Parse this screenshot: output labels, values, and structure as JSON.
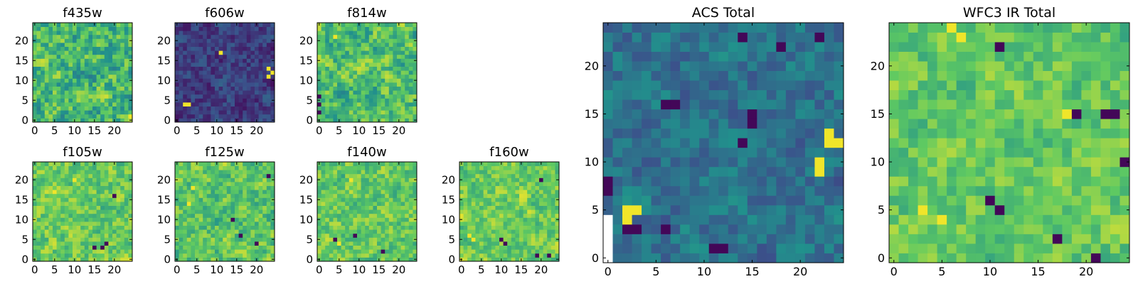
{
  "figure": {
    "colormap": "viridis",
    "colormap_stops": [
      "#440154",
      "#3b528b",
      "#21918c",
      "#5ec962",
      "#fde725"
    ]
  },
  "chart_data": [
    {
      "type": "heatmap",
      "title": "f435w",
      "grid_size": 25,
      "xticks": [
        0,
        5,
        10,
        15,
        20
      ],
      "yticks": [
        0,
        5,
        10,
        15,
        20
      ],
      "xlim": [
        0,
        25
      ],
      "ylim": [
        0,
        25
      ],
      "value_range": [
        0,
        1
      ],
      "mean_level": 0.66,
      "spread": 0.22,
      "high_spots": [
        [
          24,
          1
        ]
      ],
      "low_spots": []
    },
    {
      "type": "heatmap",
      "title": "f606w",
      "grid_size": 25,
      "xticks": [
        0,
        5,
        10,
        15,
        20
      ],
      "yticks": [
        0,
        5,
        10,
        15,
        20
      ],
      "xlim": [
        0,
        25
      ],
      "ylim": [
        0,
        25
      ],
      "value_range": [
        0,
        1
      ],
      "mean_level": 0.18,
      "spread": 0.12,
      "high_spots": [
        [
          24,
          12
        ],
        [
          23,
          13
        ],
        [
          23,
          11
        ],
        [
          2,
          4
        ],
        [
          3,
          4
        ],
        [
          11,
          17
        ]
      ],
      "low_spots": []
    },
    {
      "type": "heatmap",
      "title": "f814w",
      "grid_size": 25,
      "xticks": [
        0,
        5,
        10,
        15,
        20
      ],
      "yticks": [
        0,
        5,
        10,
        15,
        20
      ],
      "xlim": [
        0,
        25
      ],
      "ylim": [
        0,
        25
      ],
      "value_range": [
        0,
        1
      ],
      "mean_level": 0.68,
      "spread": 0.2,
      "high_spots": [
        [
          4,
          21
        ]
      ],
      "low_spots": [
        [
          0,
          2
        ],
        [
          0,
          4
        ],
        [
          0,
          6
        ]
      ]
    },
    {
      "type": "heatmap",
      "title": "f105w",
      "grid_size": 25,
      "xticks": [
        0,
        5,
        10,
        15,
        20
      ],
      "yticks": [
        0,
        5,
        10,
        15,
        20
      ],
      "xlim": [
        0,
        25
      ],
      "ylim": [
        0,
        25
      ],
      "value_range": [
        0,
        1
      ],
      "mean_level": 0.75,
      "spread": 0.16,
      "high_spots": [
        [
          5,
          17
        ],
        [
          10,
          20
        ]
      ],
      "low_spots": [
        [
          18,
          4
        ],
        [
          17,
          3
        ],
        [
          15,
          3
        ],
        [
          20,
          16
        ]
      ]
    },
    {
      "type": "heatmap",
      "title": "f125w",
      "grid_size": 25,
      "xticks": [
        0,
        5,
        10,
        15,
        20
      ],
      "yticks": [
        0,
        5,
        10,
        15,
        20
      ],
      "xlim": [
        0,
        25
      ],
      "ylim": [
        0,
        25
      ],
      "value_range": [
        0,
        1
      ],
      "mean_level": 0.72,
      "spread": 0.17,
      "high_spots": [
        [
          3,
          14
        ],
        [
          4,
          18
        ]
      ],
      "low_spots": [
        [
          14,
          10
        ],
        [
          16,
          6
        ],
        [
          23,
          21
        ],
        [
          20,
          4
        ]
      ]
    },
    {
      "type": "heatmap",
      "title": "f140w",
      "grid_size": 25,
      "xticks": [
        0,
        5,
        10,
        15,
        20
      ],
      "yticks": [
        0,
        5,
        10,
        15,
        20
      ],
      "xlim": [
        0,
        25
      ],
      "ylim": [
        0,
        25
      ],
      "value_range": [
        0,
        1
      ],
      "mean_level": 0.74,
      "spread": 0.16,
      "high_spots": [
        [
          8,
          20
        ],
        [
          5,
          4
        ]
      ],
      "low_spots": [
        [
          9,
          6
        ],
        [
          4,
          5
        ],
        [
          16,
          2
        ]
      ]
    },
    {
      "type": "heatmap",
      "title": "f160w",
      "grid_size": 25,
      "xticks": [
        0,
        5,
        10,
        15,
        20
      ],
      "yticks": [
        0,
        5,
        10,
        15,
        20
      ],
      "xlim": [
        0,
        25
      ],
      "ylim": [
        0,
        25
      ],
      "value_range": [
        0,
        1
      ],
      "mean_level": 0.76,
      "spread": 0.15,
      "high_spots": [
        [
          2,
          6
        ],
        [
          3,
          5
        ]
      ],
      "low_spots": [
        [
          10,
          5
        ],
        [
          11,
          4
        ],
        [
          19,
          1
        ],
        [
          22,
          1
        ],
        [
          20,
          20
        ]
      ]
    },
    {
      "type": "heatmap",
      "title": "ACS Total",
      "grid_size": 25,
      "xticks": [
        0,
        5,
        10,
        15,
        20
      ],
      "yticks": [
        0,
        5,
        10,
        15,
        20
      ],
      "xlim": [
        0,
        25
      ],
      "ylim": [
        0,
        25
      ],
      "value_range": [
        0,
        1
      ],
      "mean_level": 0.38,
      "spread": 0.13,
      "high_spots": [
        [
          24,
          12
        ],
        [
          23,
          12
        ],
        [
          23,
          13
        ],
        [
          22,
          10
        ],
        [
          22,
          9
        ],
        [
          2,
          4
        ],
        [
          3,
          5
        ],
        [
          2,
          5
        ]
      ],
      "low_spots": [
        [
          0,
          7
        ],
        [
          0,
          8
        ],
        [
          6,
          16
        ],
        [
          7,
          16
        ],
        [
          15,
          15
        ],
        [
          15,
          14
        ],
        [
          14,
          12
        ],
        [
          12,
          1
        ],
        [
          2,
          3
        ],
        [
          3,
          3
        ],
        [
          14,
          23
        ],
        [
          18,
          22
        ],
        [
          22,
          23
        ],
        [
          11,
          1
        ],
        [
          6,
          3
        ]
      ],
      "missing_cells": [
        [
          0,
          0
        ],
        [
          0,
          1
        ],
        [
          0,
          2
        ],
        [
          0,
          3
        ],
        [
          0,
          4
        ]
      ]
    },
    {
      "type": "heatmap",
      "title": "WFC3 IR Total",
      "grid_size": 25,
      "xticks": [
        0,
        5,
        10,
        15,
        20
      ],
      "yticks": [
        0,
        5,
        10,
        15,
        20
      ],
      "xlim": [
        0,
        25
      ],
      "ylim": [
        0,
        25
      ],
      "value_range": [
        0,
        1
      ],
      "mean_level": 0.74,
      "spread": 0.14,
      "high_spots": [
        [
          6,
          24
        ],
        [
          7,
          23
        ],
        [
          5,
          4
        ],
        [
          3,
          5
        ],
        [
          18,
          15
        ]
      ],
      "low_spots": [
        [
          19,
          15
        ],
        [
          22,
          15
        ],
        [
          23,
          15
        ],
        [
          10,
          6
        ],
        [
          11,
          5
        ],
        [
          17,
          2
        ],
        [
          21,
          0
        ],
        [
          24,
          10
        ],
        [
          11,
          22
        ]
      ]
    }
  ]
}
